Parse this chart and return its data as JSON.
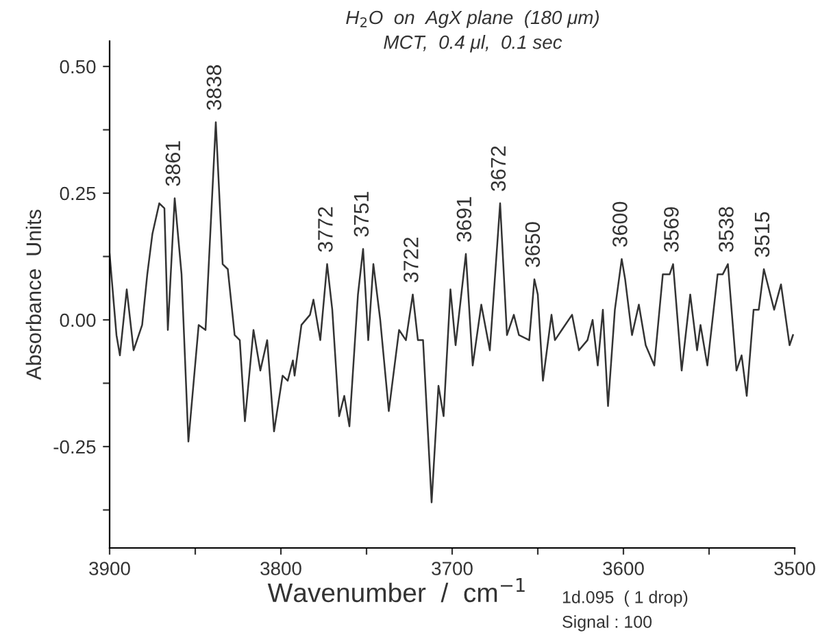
{
  "chart_data": {
    "type": "line",
    "title": "H$_{2}$O  on  AgX plane  (180 μm)",
    "subtitle": "MCT,  0.4 μl,  0.1 sec",
    "xlabel": "Wavenumber  /  cm$^{−1}$",
    "ylabel": "Absorbance  Units",
    "series": [
      {
        "color": "#333333",
        "x": [
          3900,
          3896,
          3894,
          3890,
          3886,
          3881,
          3878,
          3875,
          3871,
          3868,
          3866,
          3862,
          3858,
          3854,
          3848,
          3844,
          3838,
          3834,
          3831,
          3827,
          3824,
          3821,
          3816,
          3812,
          3808,
          3804,
          3799,
          3796,
          3793,
          3792,
          3788,
          3783,
          3781,
          3777,
          3773,
          3770,
          3766,
          3763,
          3760,
          3755,
          3752,
          3749,
          3746,
          3742,
          3737,
          3731,
          3727,
          3723,
          3720,
          3717,
          3712,
          3708,
          3705,
          3701,
          3698,
          3692,
          3688,
          3683,
          3678,
          3672,
          3668,
          3664,
          3661,
          3655,
          3652,
          3650,
          3647,
          3642,
          3640,
          3636,
          3630,
          3626,
          3621,
          3618,
          3615,
          3612,
          3609,
          3605,
          3601,
          3599,
          3595,
          3591,
          3587,
          3582,
          3577,
          3573,
          3571,
          3566,
          3561,
          3557,
          3555,
          3551,
          3545,
          3542,
          3539,
          3534,
          3531,
          3528,
          3524,
          3521,
          3518,
          3512,
          3508,
          3503,
          3501
        ],
        "values": [
          0.13,
          -0.03,
          -0.07,
          0.06,
          -0.06,
          -0.01,
          0.09,
          0.17,
          0.23,
          0.22,
          -0.02,
          0.24,
          0.09,
          -0.24,
          -0.01,
          -0.02,
          0.39,
          0.11,
          0.1,
          -0.03,
          -0.04,
          -0.2,
          -0.02,
          -0.1,
          -0.04,
          -0.22,
          -0.11,
          -0.12,
          -0.08,
          -0.11,
          -0.01,
          0.01,
          0.04,
          -0.04,
          0.11,
          0.02,
          -0.19,
          -0.15,
          -0.21,
          0.05,
          0.14,
          -0.04,
          0.11,
          0.0,
          -0.18,
          -0.02,
          -0.04,
          0.05,
          -0.04,
          -0.04,
          -0.36,
          -0.13,
          -0.19,
          0.06,
          -0.05,
          0.13,
          -0.09,
          0.03,
          -0.06,
          0.23,
          -0.03,
          0.01,
          -0.03,
          -0.04,
          0.08,
          0.05,
          -0.12,
          0.01,
          -0.04,
          -0.02,
          0.01,
          -0.06,
          -0.04,
          0.0,
          -0.09,
          0.02,
          -0.17,
          0.02,
          0.12,
          0.08,
          -0.03,
          0.03,
          -0.05,
          -0.09,
          0.09,
          0.09,
          0.11,
          -0.1,
          0.05,
          -0.06,
          -0.01,
          -0.09,
          0.09,
          0.09,
          0.11,
          -0.1,
          -0.07,
          -0.15,
          0.02,
          0.02,
          0.1,
          0.02,
          0.07,
          -0.05,
          -0.03
        ]
      }
    ],
    "xlim": [
      3900,
      3500
    ],
    "xticks": [
      3900,
      {
        "value": 3850,
        "label": null
      },
      3800,
      {
        "value": 3750,
        "label": null
      },
      3700,
      {
        "value": 3650,
        "label": null
      },
      3600,
      {
        "value": 3550,
        "label": null
      },
      3500
    ],
    "ylim": [
      -0.45,
      0.55
    ],
    "yticks": [
      {
        "value": -0.375,
        "label": null
      },
      {
        "value": -0.25,
        "label": "-0.25"
      },
      {
        "value": -0.125,
        "label": null
      },
      {
        "value": 0,
        "label": "0.00"
      },
      {
        "value": 0.125,
        "label": null
      },
      {
        "value": 0.25,
        "label": "0.25"
      },
      {
        "value": 0.375,
        "label": null
      },
      {
        "value": 0.5,
        "label": "0.50"
      }
    ],
    "grid": false,
    "legend": false,
    "marker": "none",
    "line_style": "solid",
    "annotations": [
      {
        "text": "3861",
        "x": 3862,
        "y": 0.24
      },
      {
        "text": "3838",
        "x": 3838,
        "y": 0.39
      },
      {
        "text": "3772",
        "x": 3773,
        "y": 0.11
      },
      {
        "text": "3751",
        "x": 3752,
        "y": 0.14
      },
      {
        "text": "3722",
        "x": 3723,
        "y": 0.05
      },
      {
        "text": "3691",
        "x": 3692,
        "y": 0.13
      },
      {
        "text": "3672",
        "x": 3672,
        "y": 0.23
      },
      {
        "text": "3650",
        "x": 3652,
        "y": 0.08
      },
      {
        "text": "3600",
        "x": 3601,
        "y": 0.12
      },
      {
        "text": "3569",
        "x": 3571,
        "y": 0.11
      },
      {
        "text": "3538",
        "x": 3539,
        "y": 0.11
      },
      {
        "text": "3515",
        "x": 3518,
        "y": 0.1
      },
      "1d.095  ( 1 drop)",
      "Signal : 100"
    ]
  }
}
